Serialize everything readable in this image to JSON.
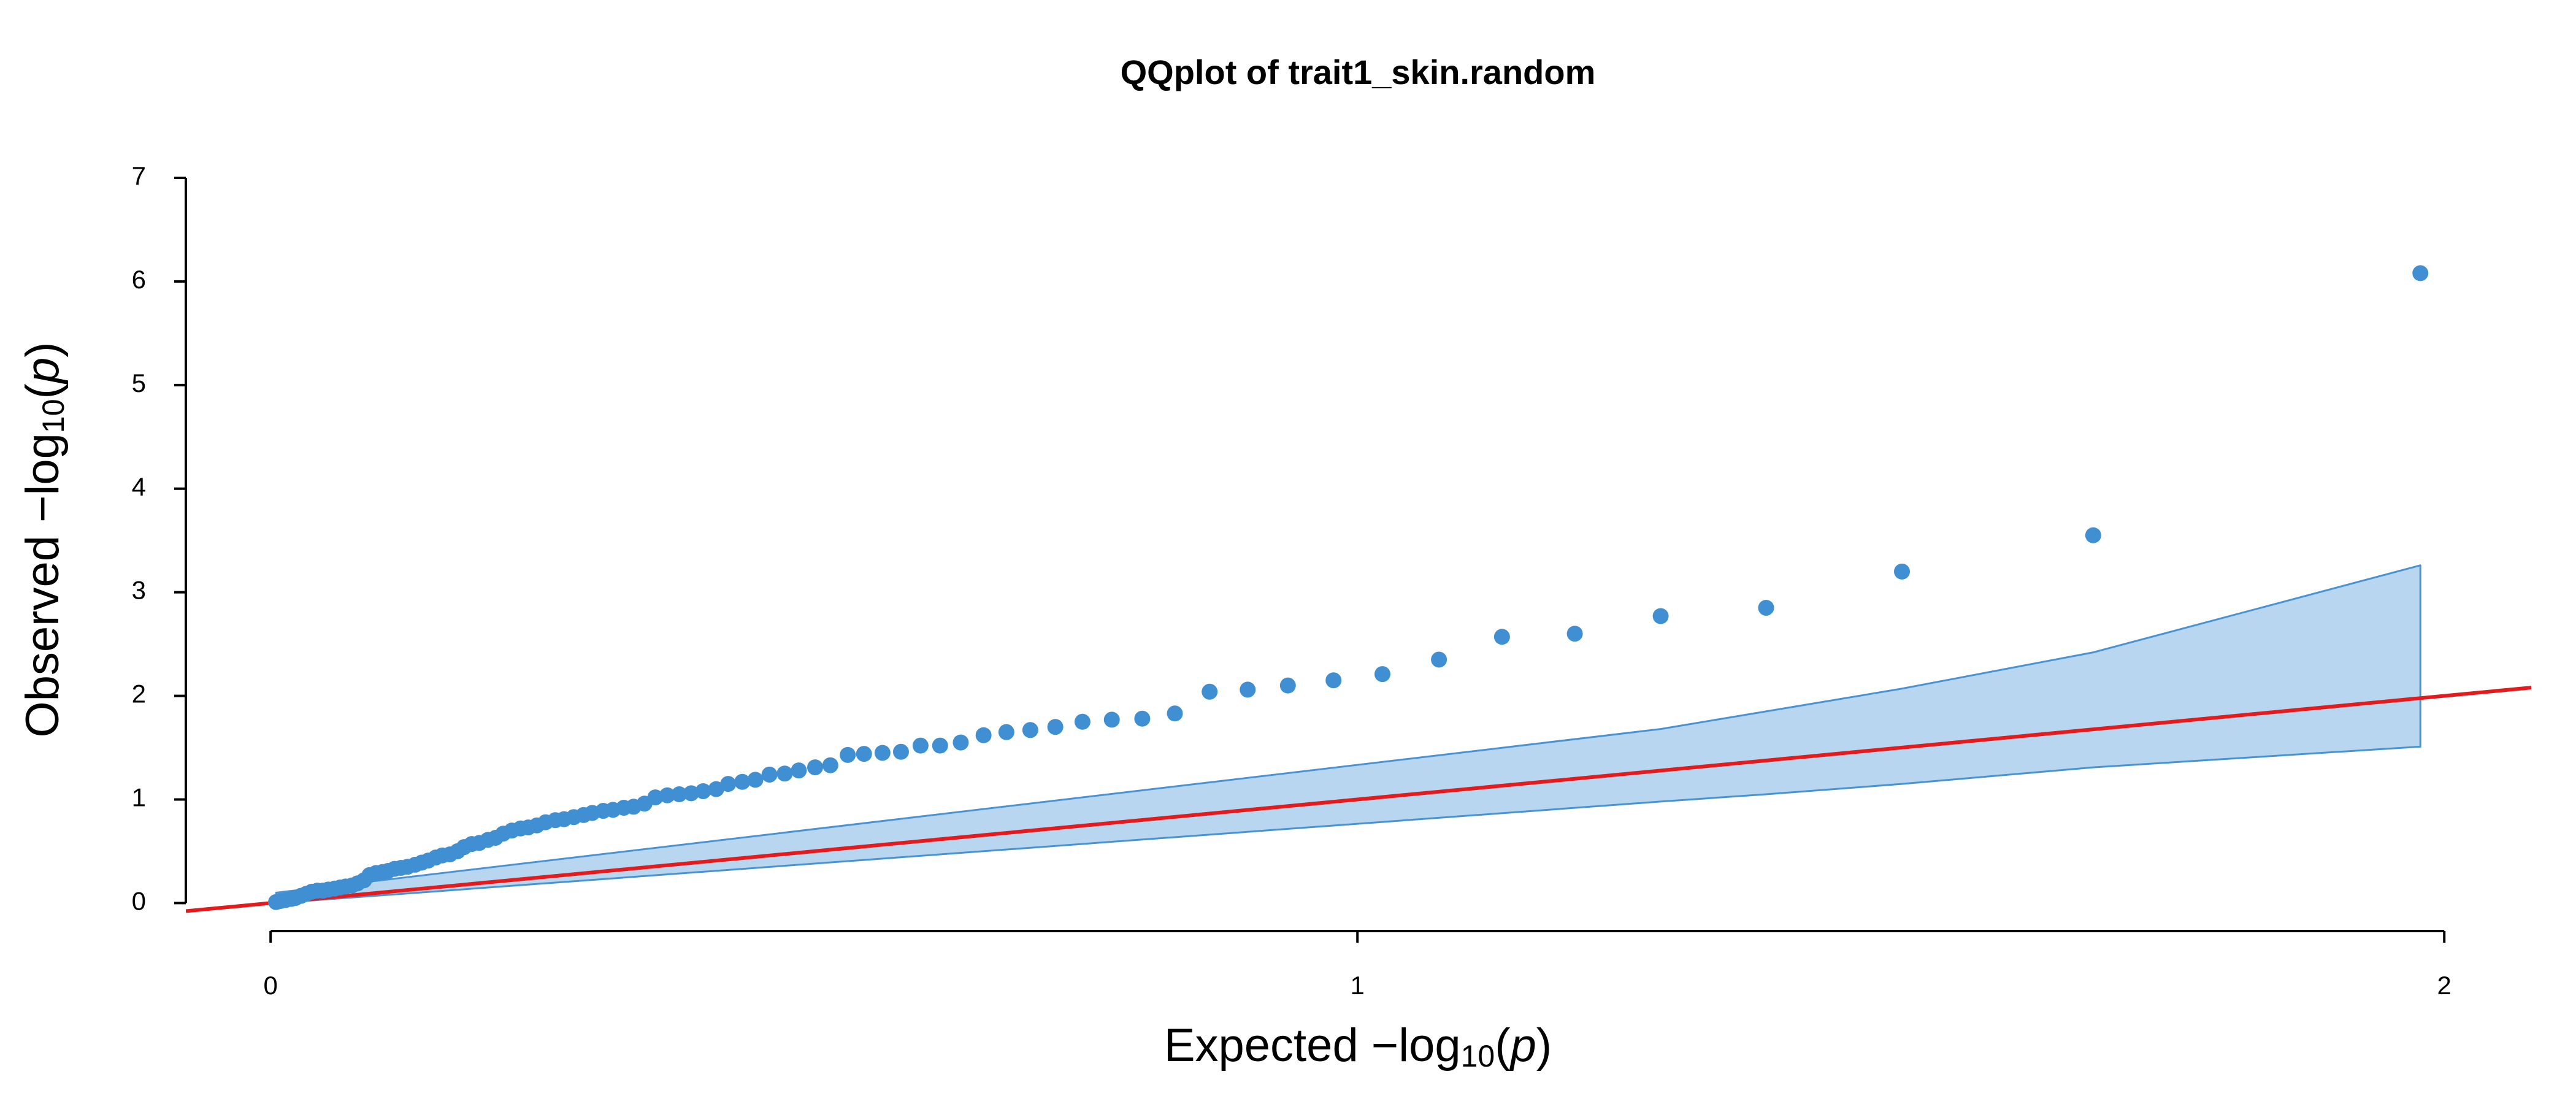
{
  "chart_data": {
    "type": "qq",
    "title": "QQplot of trait1_skin.random",
    "xlabel_parts": [
      "Expected  −log",
      "10",
      "(",
      "p",
      ")"
    ],
    "ylabel_parts": [
      "Observed  −log",
      "10",
      "(",
      "p",
      ")"
    ],
    "xlim": [
      -0.078,
      2.08
    ],
    "ylim": [
      -0.27,
      7
    ],
    "xticks": [
      0,
      1,
      2
    ],
    "yticks": [
      0,
      1,
      2,
      3,
      4,
      5,
      6,
      7
    ],
    "grid": false,
    "point_color": "#3f8fd2",
    "line_color": "#e41a1c",
    "band_fill": "#b8d6f0",
    "band_stroke": "#4a93d3",
    "x": [
      1.978,
      1.677,
      1.501,
      1.376,
      1.279,
      1.2,
      1.133,
      1.075,
      1.023,
      0.978,
      0.936,
      0.899,
      0.864,
      0.832,
      0.802,
      0.774,
      0.747,
      0.722,
      0.699,
      0.677,
      0.656,
      0.635,
      0.616,
      0.598,
      0.58,
      0.563,
      0.546,
      0.531,
      0.515,
      0.501,
      0.486,
      0.473,
      0.459,
      0.446,
      0.434,
      0.421,
      0.41,
      0.398,
      0.387,
      0.376,
      0.365,
      0.354,
      0.344,
      0.334,
      0.325,
      0.315,
      0.306,
      0.296,
      0.288,
      0.279,
      0.27,
      0.262,
      0.253,
      0.245,
      0.237,
      0.23,
      0.222,
      0.214,
      0.207,
      0.2,
      0.192,
      0.185,
      0.178,
      0.172,
      0.165,
      0.158,
      0.152,
      0.145,
      0.139,
      0.133,
      0.126,
      0.12,
      0.114,
      0.108,
      0.103,
      0.097,
      0.091,
      0.086,
      0.08,
      0.075,
      0.069,
      0.064,
      0.059,
      0.053,
      0.048,
      0.043,
      0.038,
      0.033,
      0.028,
      0.023,
      0.019,
      0.014,
      0.009,
      0.005
    ],
    "values": [
      6.08,
      3.55,
      3.2,
      2.85,
      2.77,
      2.6,
      2.57,
      2.35,
      2.21,
      2.15,
      2.1,
      2.06,
      2.04,
      1.83,
      1.78,
      1.77,
      1.75,
      1.7,
      1.67,
      1.65,
      1.62,
      1.55,
      1.52,
      1.52,
      1.46,
      1.45,
      1.44,
      1.43,
      1.33,
      1.31,
      1.28,
      1.25,
      1.24,
      1.19,
      1.17,
      1.15,
      1.1,
      1.08,
      1.06,
      1.05,
      1.04,
      1.02,
      0.96,
      0.93,
      0.92,
      0.9,
      0.89,
      0.87,
      0.85,
      0.83,
      0.81,
      0.8,
      0.78,
      0.75,
      0.73,
      0.72,
      0.7,
      0.67,
      0.63,
      0.61,
      0.58,
      0.57,
      0.54,
      0.5,
      0.47,
      0.46,
      0.44,
      0.41,
      0.39,
      0.37,
      0.35,
      0.34,
      0.33,
      0.31,
      0.3,
      0.29,
      0.27,
      0.22,
      0.19,
      0.17,
      0.16,
      0.15,
      0.14,
      0.13,
      0.12,
      0.12,
      0.11,
      0.09,
      0.07,
      0.05,
      0.04,
      0.03,
      0.02,
      0.01
    ],
    "band": {
      "x": [
        0.005,
        1.279,
        1.376,
        1.501,
        1.677,
        1.978
      ],
      "upper": [
        0.1,
        1.68,
        1.85,
        2.07,
        2.42,
        3.26
      ],
      "lower": [
        0,
        0.98,
        1.05,
        1.15,
        1.31,
        1.51
      ]
    }
  }
}
